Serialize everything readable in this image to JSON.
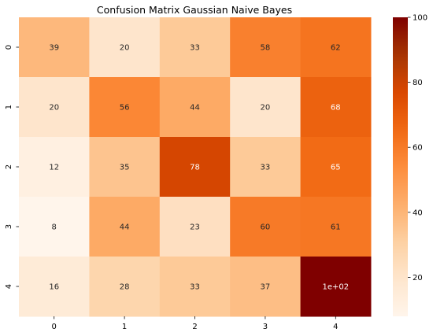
{
  "chart_data": {
    "type": "heatmap",
    "title": "Confusion Matrix Gaussian Naive Bayes",
    "xlabel": "",
    "ylabel": "",
    "x_categories": [
      "0",
      "1",
      "2",
      "3",
      "4"
    ],
    "y_categories": [
      "0",
      "1",
      "2",
      "3",
      "4"
    ],
    "values": [
      [
        39,
        20,
        33,
        58,
        62
      ],
      [
        20,
        56,
        44,
        20,
        68
      ],
      [
        12,
        35,
        78,
        33,
        65
      ],
      [
        8,
        44,
        23,
        60,
        61
      ],
      [
        16,
        28,
        33,
        37,
        100
      ]
    ],
    "annotations": [
      [
        "39",
        "20",
        "33",
        "58",
        "62"
      ],
      [
        "20",
        "56",
        "44",
        "20",
        "68"
      ],
      [
        "12",
        "35",
        "78",
        "33",
        "65"
      ],
      [
        "8",
        "44",
        "23",
        "60",
        "61"
      ],
      [
        "16",
        "28",
        "33",
        "37",
        "1e+02"
      ]
    ],
    "colormap": "Oranges",
    "vmin": 8,
    "vmax": 100,
    "colorbar_ticks": [
      20,
      40,
      60,
      80,
      100
    ],
    "grid": false
  }
}
